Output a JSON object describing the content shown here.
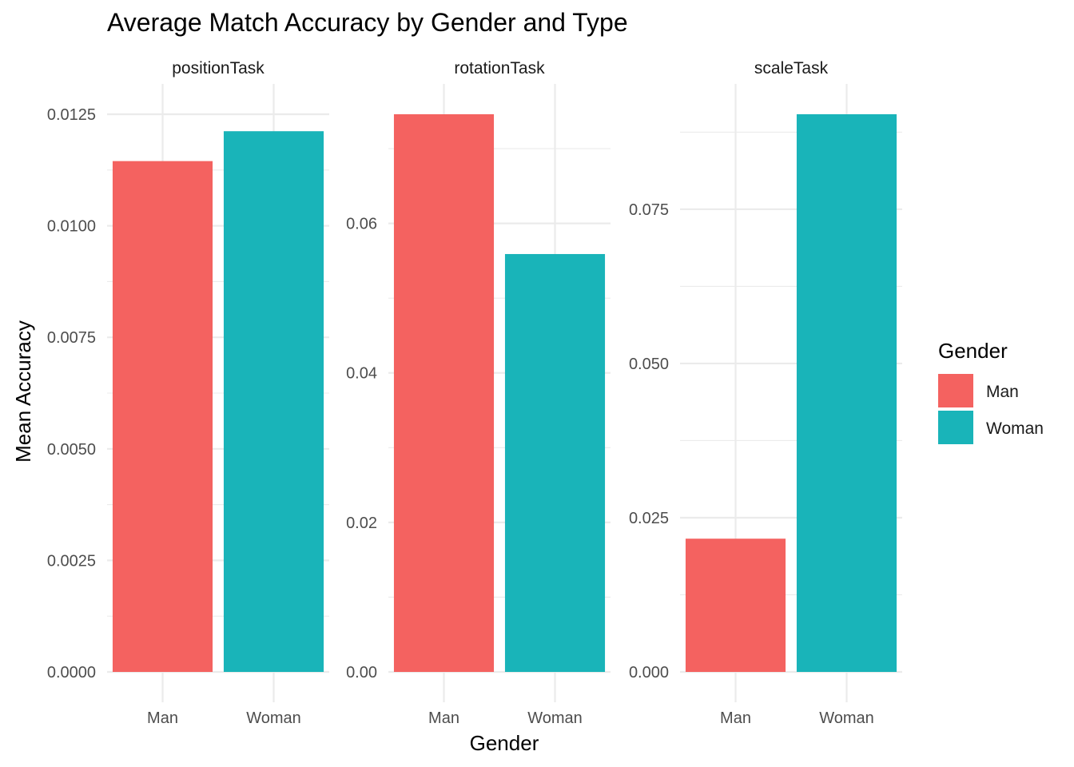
{
  "chart_data": {
    "type": "bar",
    "title": "Average Match Accuracy by Gender and Type",
    "xlabel": "Gender",
    "ylabel": "Mean Accuracy",
    "categories": [
      "Man",
      "Woman"
    ],
    "colors": {
      "Man": "#F46260",
      "Woman": "#19B4B9"
    },
    "legend": {
      "title": "Gender",
      "position": "right",
      "items": [
        "Man",
        "Woman"
      ]
    },
    "grid": true,
    "facets": [
      {
        "name": "positionTask",
        "values": [
          0.01145,
          0.01212
        ],
        "ylim": [
          0,
          0.0125
        ],
        "major_ticks": [
          0.0,
          0.0025,
          0.005,
          0.0075,
          0.01,
          0.0125
        ],
        "tick_labels": [
          "0.0000",
          "0.0025",
          "0.0050",
          "0.0075",
          "0.0100",
          "0.0125"
        ],
        "minor_ticks": [
          0.00125,
          0.00375,
          0.00625,
          0.00875,
          0.01125
        ]
      },
      {
        "name": "rotationTask",
        "values": [
          0.0746,
          0.0559
        ],
        "ylim": [
          0,
          0.0746
        ],
        "major_ticks": [
          0.0,
          0.02,
          0.04,
          0.06
        ],
        "tick_labels": [
          "0.00",
          "0.02",
          "0.04",
          "0.06"
        ],
        "minor_ticks": [
          0.01,
          0.03,
          0.05,
          0.07
        ]
      },
      {
        "name": "scaleTask",
        "values": [
          0.0216,
          0.0904
        ],
        "ylim": [
          0,
          0.0904
        ],
        "major_ticks": [
          0.0,
          0.025,
          0.05,
          0.075
        ],
        "tick_labels": [
          "0.000",
          "0.025",
          "0.050",
          "0.075"
        ],
        "minor_ticks": [
          0.0125,
          0.0375,
          0.0625,
          0.0875
        ]
      }
    ]
  }
}
